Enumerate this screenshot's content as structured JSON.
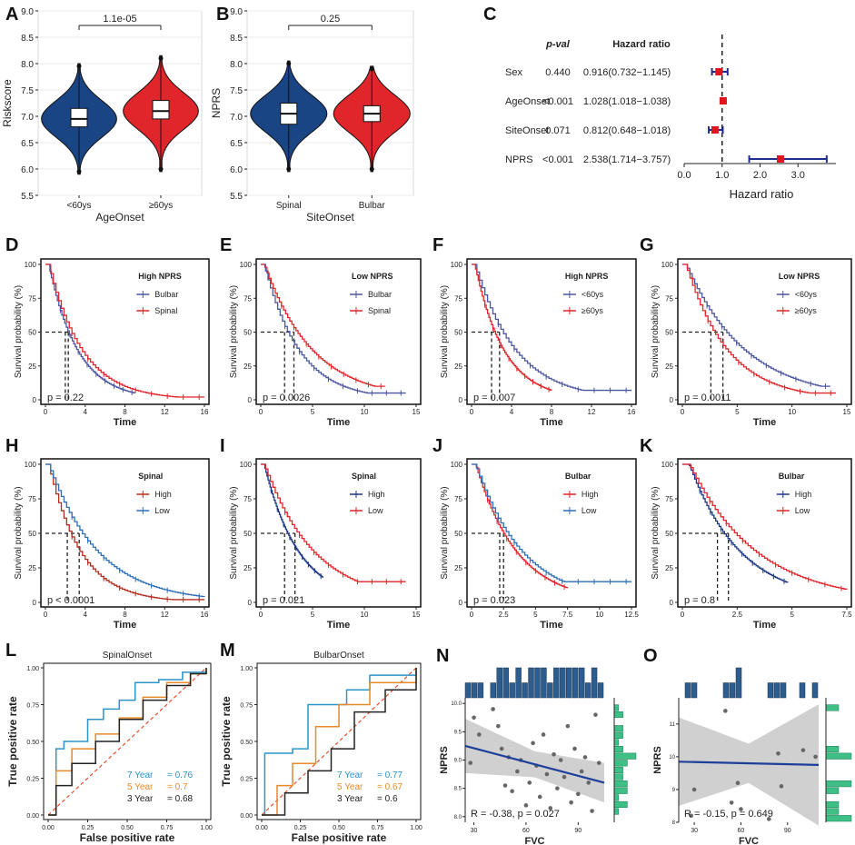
{
  "colors": {
    "blue": "#1a4585",
    "red": "#e0262b",
    "orange": "#e8892a",
    "steel": "#2c6fb8",
    "teal": "#2a93c8",
    "ink": "#222222",
    "grey_band": "#c8c8c8",
    "green": "#3dbf86",
    "hist_blue": "#2c5d8e"
  },
  "chart_data": [
    {
      "panel": "A",
      "type": "violin",
      "ylabel": "Riskscore",
      "xlabel": "AgeOnset",
      "categories": [
        "<60ys",
        "≥60ys"
      ],
      "ylim": [
        5.5,
        9.0
      ],
      "yticks": [
        "5.5",
        "6.0",
        "6.5",
        "7.0",
        "7.5",
        "8.0",
        "8.5",
        "9.0"
      ],
      "pvalue": "1.1e-05",
      "boxes": [
        {
          "q1": 6.8,
          "median": 6.95,
          "q3": 7.15,
          "min": 5.95,
          "max": 7.95
        },
        {
          "q1": 6.95,
          "median": 7.1,
          "q3": 7.3,
          "min": 6.0,
          "max": 8.1
        }
      ]
    },
    {
      "panel": "B",
      "type": "violin",
      "ylabel": "NPRS",
      "xlabel": "SiteOnset",
      "categories": [
        "Spinal",
        "Bulbar"
      ],
      "ylim": [
        5.5,
        9.0
      ],
      "yticks": [
        "5.5",
        "6.0",
        "6.5",
        "7.0",
        "7.5",
        "8.0",
        "8.5",
        "9.0"
      ],
      "pvalue": "0.25",
      "boxes": [
        {
          "q1": 6.85,
          "median": 7.05,
          "q3": 7.25,
          "min": 6.0,
          "max": 8.0
        },
        {
          "q1": 6.9,
          "median": 7.05,
          "q3": 7.2,
          "min": 6.0,
          "max": 7.9
        }
      ]
    },
    {
      "panel": "C",
      "type": "forest",
      "xlabel": "Hazard ratio",
      "pval_header": "p-val",
      "hr_header": "Hazard ratio",
      "xticks": [
        "0.0",
        "1.0",
        "2.0",
        "3.0"
      ],
      "xlim": [
        0,
        4.0
      ],
      "rows": [
        {
          "label": "Sex",
          "p": "0.440",
          "hr_text": "0.916(0.732−1.145)",
          "hr": 0.916,
          "lo": 0.732,
          "hi": 1.145
        },
        {
          "label": "AgeOnset",
          "p": "<0.001",
          "hr_text": "1.028(1.018−1.038)",
          "hr": 1.028,
          "lo": 1.018,
          "hi": 1.038
        },
        {
          "label": "SiteOnset",
          "p": "0.071",
          "hr_text": "0.812(0.648−1.018)",
          "hr": 0.812,
          "lo": 0.648,
          "hi": 1.018
        },
        {
          "label": "NPRS",
          "p": "<0.001",
          "hr_text": "2.538(1.714−3.757)",
          "hr": 2.538,
          "lo": 1.714,
          "hi": 3.757
        }
      ]
    },
    {
      "panel": "D",
      "type": "km",
      "xmax": 16,
      "xticks": [
        "0",
        "4",
        "8",
        "12",
        "16"
      ],
      "title": "High NPRS",
      "pvalue": "p = 0.22",
      "medians": [
        2.0,
        2.3
      ],
      "series": [
        {
          "name": "Bulbar",
          "color": "#4a55a0",
          "med": 2.0,
          "tail": 0.0,
          "end": 9.0
        },
        {
          "name": "Spinal",
          "color": "#e0262b",
          "med": 2.3,
          "tail": 0.02,
          "end": 16.0
        }
      ]
    },
    {
      "panel": "E",
      "type": "km",
      "xmax": 15,
      "xticks": [
        "0",
        "5",
        "10",
        "15"
      ],
      "title": "Low NPRS",
      "pvalue": "p = 0.0026",
      "medians": [
        2.3,
        3.2
      ],
      "series": [
        {
          "name": "Bulbar",
          "color": "#4a55a0",
          "med": 2.3,
          "tail": 0.05,
          "end": 14.0
        },
        {
          "name": "Spinal",
          "color": "#e0262b",
          "med": 3.2,
          "tail": 0.1,
          "end": 12.0
        }
      ]
    },
    {
      "panel": "F",
      "type": "km",
      "xmax": 16,
      "xticks": [
        "0",
        "4",
        "8",
        "12",
        "16"
      ],
      "title": "High NPRS",
      "pvalue": "p = 0.007",
      "medians": [
        2.0,
        2.8
      ],
      "series": [
        {
          "name": "<60ys",
          "color": "#4a55a0",
          "med": 2.8,
          "tail": 0.07,
          "end": 16.0
        },
        {
          "name": "≥60ys",
          "color": "#e0262b",
          "med": 2.0,
          "tail": 0.02,
          "end": 8.0
        }
      ]
    },
    {
      "panel": "G",
      "type": "km",
      "xmax": 15,
      "xticks": [
        "0",
        "5",
        "10",
        "15"
      ],
      "title": "Low NPRS",
      "pvalue": "p = 0.0011",
      "medians": [
        2.6,
        3.7
      ],
      "series": [
        {
          "name": "<60ys",
          "color": "#4a55a0",
          "med": 3.7,
          "tail": 0.1,
          "end": 13.5
        },
        {
          "name": "≥60ys",
          "color": "#e0262b",
          "med": 2.6,
          "tail": 0.05,
          "end": 14.0
        }
      ]
    },
    {
      "panel": "H",
      "type": "km",
      "xmax": 16,
      "xticks": [
        "0",
        "4",
        "8",
        "12",
        "16"
      ],
      "title": "Spinal",
      "pvalue": "p < 0.0001",
      "medians": [
        2.2,
        3.4
      ],
      "series": [
        {
          "name": "High",
          "color": "#b32d1e",
          "med": 2.2,
          "tail": 0.02,
          "end": 16.0
        },
        {
          "name": "Low",
          "color": "#2c6fb8",
          "med": 3.4,
          "tail": 0.02,
          "end": 16.0
        }
      ]
    },
    {
      "panel": "I",
      "type": "km",
      "xmax": 15,
      "xticks": [
        "0",
        "5",
        "10",
        "15"
      ],
      "title": "Spinal",
      "pvalue": "p = 0.021",
      "medians": [
        2.3,
        3.3
      ],
      "series": [
        {
          "name": "High",
          "color": "#1a3585",
          "med": 2.3,
          "tail": 0.1,
          "end": 6.0
        },
        {
          "name": "Low",
          "color": "#e0262b",
          "med": 3.3,
          "tail": 0.15,
          "end": 14.0
        }
      ]
    },
    {
      "panel": "J",
      "type": "km",
      "xmax": 12.5,
      "xticks": [
        "0",
        "2.5",
        "5",
        "7.5",
        "10",
        "12.5"
      ],
      "title": "Bulbar",
      "pvalue": "p = 0.023",
      "medians": [
        2.2,
        2.5
      ],
      "series": [
        {
          "name": "High",
          "color": "#e0262b",
          "med": 2.2,
          "tail": 0.05,
          "end": 7.5
        },
        {
          "name": "Low",
          "color": "#2c6fb8",
          "med": 2.5,
          "tail": 0.15,
          "end": 12.5
        }
      ]
    },
    {
      "panel": "K",
      "type": "km",
      "xmax": 7.5,
      "xticks": [
        "0",
        "2.5",
        "5",
        "7.5"
      ],
      "title": "Bulbar",
      "pvalue": "p = 0.8",
      "medians": [
        1.6,
        2.1
      ],
      "series": [
        {
          "name": "High",
          "color": "#1a3585",
          "med": 1.6,
          "tail": 0.05,
          "end": 4.8
        },
        {
          "name": "Low",
          "color": "#e0262b",
          "med": 2.1,
          "tail": 0.05,
          "end": 7.5
        }
      ]
    },
    {
      "panel": "L",
      "type": "roc",
      "title": "SpinalOnset",
      "xlabel": "False positive rate",
      "ylabel": "True positive rate",
      "ticks": [
        "0.00",
        "0.25",
        "0.50",
        "0.75",
        "1.00"
      ],
      "series": [
        {
          "label": "7 Year",
          "auc": "= 0.76",
          "color": "#2a93c8",
          "shape": [
            [
              0,
              0
            ],
            [
              0.05,
              0.45
            ],
            [
              0.1,
              0.5
            ],
            [
              0.25,
              0.65
            ],
            [
              0.35,
              0.72
            ],
            [
              0.45,
              0.78
            ],
            [
              0.55,
              0.9
            ],
            [
              0.7,
              0.92
            ],
            [
              0.85,
              0.97
            ],
            [
              1,
              1
            ]
          ]
        },
        {
          "label": "5 Year",
          "auc": "= 0.7",
          "color": "#e8892a",
          "shape": [
            [
              0,
              0
            ],
            [
              0.05,
              0.3
            ],
            [
              0.15,
              0.45
            ],
            [
              0.3,
              0.55
            ],
            [
              0.45,
              0.66
            ],
            [
              0.6,
              0.8
            ],
            [
              0.75,
              0.9
            ],
            [
              0.9,
              0.96
            ],
            [
              1,
              1
            ]
          ]
        },
        {
          "label": "3 Year",
          "auc": "= 0.68",
          "color": "#222222",
          "shape": [
            [
              0,
              0
            ],
            [
              0.05,
              0.2
            ],
            [
              0.15,
              0.35
            ],
            [
              0.3,
              0.5
            ],
            [
              0.45,
              0.65
            ],
            [
              0.6,
              0.78
            ],
            [
              0.75,
              0.88
            ],
            [
              0.9,
              0.96
            ],
            [
              1,
              1
            ]
          ]
        }
      ]
    },
    {
      "panel": "M",
      "type": "roc",
      "title": "BulbarOnset",
      "xlabel": "False positive rate",
      "ylabel": "True positive rate",
      "ticks": [
        "0.00",
        "0.25",
        "0.50",
        "0.75",
        "1.00"
      ],
      "series": [
        {
          "label": "7 Year",
          "auc": "= 0.77",
          "color": "#2a93c8",
          "shape": [
            [
              0,
              0
            ],
            [
              0.02,
              0.42
            ],
            [
              0.2,
              0.45
            ],
            [
              0.3,
              0.75
            ],
            [
              0.55,
              0.85
            ],
            [
              0.7,
              0.95
            ],
            [
              1,
              1
            ]
          ]
        },
        {
          "label": "5 Year",
          "auc": "= 0.67",
          "color": "#e8892a",
          "shape": [
            [
              0,
              0
            ],
            [
              0.1,
              0.2
            ],
            [
              0.2,
              0.35
            ],
            [
              0.35,
              0.6
            ],
            [
              0.5,
              0.75
            ],
            [
              0.7,
              0.9
            ],
            [
              1,
              1
            ]
          ]
        },
        {
          "label": "3 Year",
          "auc": "= 0.6",
          "color": "#222222",
          "shape": [
            [
              0,
              0
            ],
            [
              0.15,
              0.15
            ],
            [
              0.3,
              0.3
            ],
            [
              0.45,
              0.45
            ],
            [
              0.6,
              0.7
            ],
            [
              0.8,
              0.85
            ],
            [
              1,
              1
            ]
          ]
        }
      ]
    },
    {
      "panel": "N",
      "type": "scatter",
      "xlabel": "FVC",
      "ylabel": "NPRS",
      "xlim": [
        25,
        105
      ],
      "ylim": [
        7.9,
        10.1
      ],
      "xticks": [
        "30",
        "60",
        "90"
      ],
      "yticks": [
        "8.0",
        "8.5",
        "9.0",
        "9.5",
        "10.0"
      ],
      "stat": "R = -0.38, p = 0.027",
      "points": [
        [
          28,
          8.95
        ],
        [
          30,
          9.75
        ],
        [
          33,
          9.45
        ],
        [
          41,
          9.9
        ],
        [
          44,
          9.6
        ],
        [
          46,
          9.2
        ],
        [
          48,
          8.55
        ],
        [
          50,
          9.05
        ],
        [
          52,
          8.45
        ],
        [
          55,
          8.8
        ],
        [
          57,
          9.0
        ],
        [
          60,
          8.2
        ],
        [
          62,
          8.6
        ],
        [
          64,
          9.3
        ],
        [
          66,
          8.9
        ],
        [
          68,
          8.35
        ],
        [
          70,
          9.45
        ],
        [
          72,
          8.75
        ],
        [
          74,
          8.15
        ],
        [
          76,
          9.1
        ],
        [
          78,
          8.5
        ],
        [
          80,
          9.0
        ],
        [
          82,
          8.7
        ],
        [
          84,
          9.6
        ],
        [
          86,
          8.25
        ],
        [
          88,
          9.2
        ],
        [
          90,
          8.4
        ],
        [
          92,
          8.8
        ],
        [
          94,
          9.05
        ],
        [
          96,
          8.6
        ],
        [
          98,
          8.1
        ],
        [
          100,
          9.8
        ],
        [
          102,
          8.95
        ]
      ],
      "fit": [
        [
          25,
          9.25
        ],
        [
          105,
          8.6
        ]
      ],
      "band_halfwidth_start": 0.48,
      "band_halfwidth_mid": 0.23,
      "band_halfwidth_end": 0.35
    },
    {
      "panel": "O",
      "type": "scatter",
      "xlabel": "FVC",
      "ylabel": "NPRS",
      "xlim": [
        20,
        110
      ],
      "ylim": [
        8.0,
        11.8
      ],
      "xticks": [
        "30",
        "60",
        "90"
      ],
      "yticks": [
        "8",
        "9",
        "10",
        "11"
      ],
      "stat": "R = -0.15, p = 0.649",
      "points": [
        [
          28,
          8.2
        ],
        [
          30,
          9.0
        ],
        [
          50,
          11.4
        ],
        [
          54,
          8.6
        ],
        [
          58,
          9.2
        ],
        [
          60,
          8.4
        ],
        [
          78,
          8.1
        ],
        [
          84,
          10.1
        ],
        [
          86,
          9.1
        ],
        [
          100,
          10.2
        ],
        [
          108,
          10.0
        ]
      ],
      "fit": [
        [
          20,
          9.85
        ],
        [
          110,
          9.75
        ]
      ],
      "band_halfwidth_start": 1.35,
      "band_halfwidth_mid": 0.6,
      "band_halfwidth_end": 1.85
    }
  ],
  "panel_labels": [
    "A",
    "B",
    "C",
    "D",
    "E",
    "F",
    "G",
    "H",
    "I",
    "J",
    "K",
    "L",
    "M",
    "N",
    "O"
  ],
  "km_axis": {
    "ylabel": "Survival probability (%)",
    "xlabel": "Time",
    "yticks": [
      "0",
      "25",
      "50",
      "75",
      "100"
    ]
  }
}
